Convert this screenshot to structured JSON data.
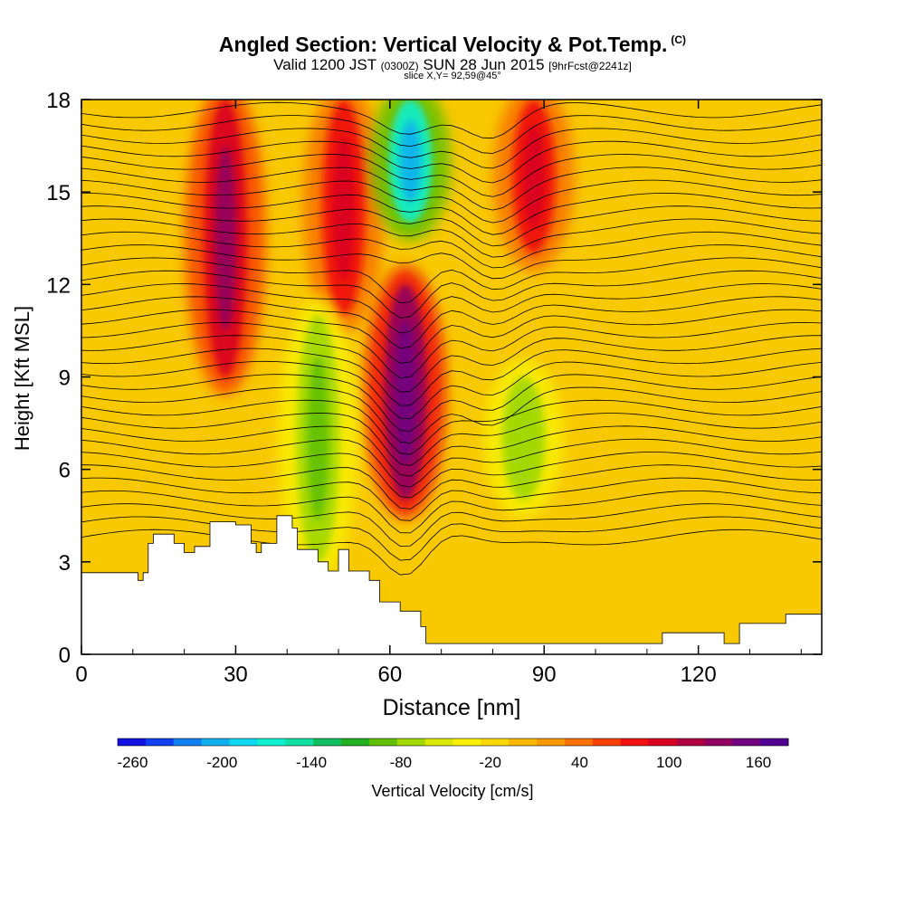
{
  "title": {
    "main": "Angled Section: Vertical Velocity & Pot.Temp.",
    "main_suffix": "(C)",
    "valid_prefix": "Valid 1200 JST",
    "valid_utc": "(0300Z)",
    "valid_date": "SUN 28 Jun 2015",
    "forecast": "[9hrFcst@2241z]",
    "slice": "slice X,Y= 92,59@45°"
  },
  "chart_data": {
    "type": "heatmap",
    "xlabel": "Distance [nm]",
    "ylabel": "Height [Kft MSL]",
    "xlim": [
      0,
      144
    ],
    "ylim": [
      0,
      18
    ],
    "xticks": [
      0,
      30,
      60,
      90,
      120
    ],
    "yticks": [
      0,
      3,
      6,
      9,
      12,
      15,
      18
    ],
    "colorbar": {
      "label": "Vertical Velocity [cm/s]",
      "ticks": [
        -260,
        -200,
        -140,
        -80,
        -20,
        40,
        100,
        160
      ],
      "range": [
        -270,
        180
      ],
      "colors": [
        "#1010e0",
        "#1040f0",
        "#1080f0",
        "#10b0f0",
        "#10d8f0",
        "#10f0d0",
        "#10e0a0",
        "#10c060",
        "#20b020",
        "#60c000",
        "#a0d800",
        "#d8e800",
        "#f8f000",
        "#f8d800",
        "#f8b800",
        "#f89800",
        "#f87000",
        "#f84000",
        "#f01010",
        "#d80020",
        "#b00040",
        "#900060",
        "#700080",
        "#500090"
      ]
    },
    "terrain_kft": [
      [
        0,
        2.65
      ],
      [
        10,
        2.65
      ],
      [
        11,
        2.4
      ],
      [
        12,
        2.65
      ],
      [
        13,
        3.6
      ],
      [
        14,
        3.9
      ],
      [
        18,
        3.6
      ],
      [
        20,
        3.3
      ],
      [
        22,
        3.5
      ],
      [
        25,
        4.3
      ],
      [
        30,
        4.2
      ],
      [
        33,
        3.6
      ],
      [
        34,
        3.3
      ],
      [
        35,
        3.6
      ],
      [
        38,
        4.5
      ],
      [
        41,
        4.1
      ],
      [
        42,
        3.4
      ],
      [
        46,
        3.0
      ],
      [
        48,
        2.7
      ],
      [
        50,
        3.4
      ],
      [
        52,
        2.7
      ],
      [
        56,
        2.4
      ],
      [
        58,
        1.7
      ],
      [
        62,
        1.4
      ],
      [
        66,
        0.9
      ],
      [
        67,
        0.35
      ],
      [
        112,
        0.35
      ],
      [
        113,
        0.7
      ],
      [
        124,
        0.7
      ],
      [
        125,
        0.35
      ],
      [
        128,
        1.0
      ],
      [
        137,
        1.3
      ],
      [
        144,
        1.3
      ]
    ],
    "updraft_cores": [
      {
        "x": 28,
        "y_top": 18,
        "y_bottom": 9,
        "value": 130
      },
      {
        "x": 51,
        "y_top": 18,
        "y_bottom": 11,
        "value": 100
      },
      {
        "x": 63,
        "y_top": 12,
        "y_bottom": 5,
        "value": 160
      },
      {
        "x": 88,
        "y_top": 18,
        "y_bottom": 13,
        "value": 100
      }
    ],
    "downdraft_cores": [
      {
        "x": 64,
        "y_top": 18,
        "y_bottom": 14,
        "value": -200
      },
      {
        "x": 46,
        "y_top": 11,
        "y_bottom": 3,
        "value": -100
      },
      {
        "x": 86,
        "y_top": 9,
        "y_bottom": 5,
        "value": -80
      }
    ]
  },
  "page": {
    "theme_background": "#ffffff",
    "field_base_color": "#f8c800"
  }
}
